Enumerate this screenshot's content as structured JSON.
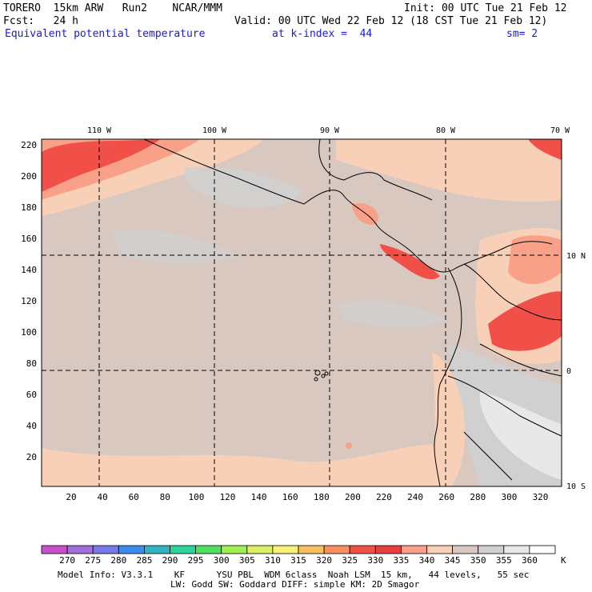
{
  "header": {
    "model": "TORERO  15km ARW   Run2    NCAR/MMM",
    "init": "Init: 00 UTC Tue 21 Feb 12",
    "fcst": "Fcst:   24 h",
    "valid": "Valid: 00 UTC Wed 22 Feb 12 (18 CST Tue 21 Feb 12)",
    "field": "Equivalent potential temperature",
    "level": "at k-index =  44",
    "smooth": "sm= 2"
  },
  "map": {
    "lon_labels": [
      "110 W",
      "100 W",
      "90 W",
      "80 W",
      "70 W"
    ],
    "lat_labels": [
      "10 N",
      "0",
      "10 S"
    ],
    "y_ticks": [
      "220",
      "200",
      "180",
      "160",
      "140",
      "120",
      "100",
      "80",
      "60",
      "40",
      "20"
    ],
    "x_ticks": [
      "20",
      "40",
      "60",
      "80",
      "100",
      "120",
      "140",
      "160",
      "180",
      "200",
      "220",
      "240",
      "260",
      "280",
      "300",
      "320"
    ]
  },
  "colorbar": {
    "labels": [
      "270",
      "275",
      "280",
      "285",
      "290",
      "295",
      "300",
      "305",
      "310",
      "315",
      "320",
      "325",
      "330",
      "335",
      "340",
      "345",
      "350",
      "355",
      "360"
    ],
    "unit": "K",
    "colors": [
      "#c850c8",
      "#a070d8",
      "#7878e8",
      "#3c8cf0",
      "#30b4c0",
      "#2ad49a",
      "#50e060",
      "#a0f050",
      "#dcf064",
      "#f8f078",
      "#f8c060",
      "#f89060",
      "#f05048",
      "#e84040",
      "#f8a088",
      "#f8d0b8",
      "#d8c8c0",
      "#d0d0d0",
      "#e8e8e8",
      "#ffffff"
    ]
  },
  "footer": {
    "line1": "Model Info: V3.3.1    KF      YSU PBL  WDM 6class  Noah LSM  15 km,   44 levels,   55 sec",
    "line2": "LW: Godd SW: Goddard DIFF: simple KM: 2D Smagor"
  }
}
